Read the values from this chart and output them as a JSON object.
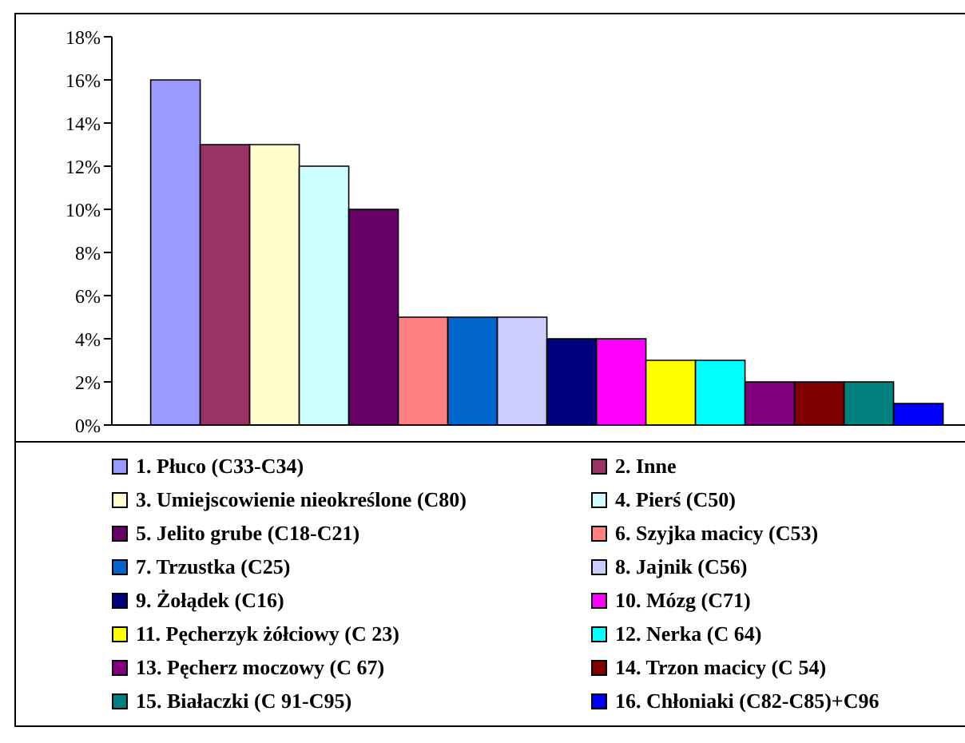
{
  "chart_data": {
    "type": "bar",
    "categories": [
      null
    ],
    "series": [
      {
        "name": "1. Płuco (C33-C34)",
        "color": "#9999ff",
        "values": [
          16
        ]
      },
      {
        "name": "2. Inne",
        "color": "#993366",
        "values": [
          13
        ]
      },
      {
        "name": "3. Umiejscowienie nieokreślone (C80)",
        "color": "#ffffcc",
        "values": [
          13
        ]
      },
      {
        "name": "4. Pierś (C50)",
        "color": "#ccffff",
        "values": [
          12
        ]
      },
      {
        "name": "5. Jelito grube (C18-C21)",
        "color": "#660066",
        "values": [
          10
        ]
      },
      {
        "name": "6. Szyjka macicy (C53)",
        "color": "#ff8080",
        "values": [
          5
        ]
      },
      {
        "name": "7. Trzustka (C25)",
        "color": "#0066cc",
        "values": [
          5
        ]
      },
      {
        "name": "8. Jajnik (C56)",
        "color": "#ccccff",
        "values": [
          5
        ]
      },
      {
        "name": "9. Żołądek (C16)",
        "color": "#000080",
        "values": [
          4
        ]
      },
      {
        "name": "10. Mózg (C71)",
        "color": "#ff00ff",
        "values": [
          4
        ]
      },
      {
        "name": "11. Pęcherzyk żółciowy (C 23)",
        "color": "#ffff00",
        "values": [
          3
        ]
      },
      {
        "name": "12. Nerka (C 64)",
        "color": "#00ffff",
        "values": [
          3
        ]
      },
      {
        "name": "13. Pęcherz moczowy (C 67)",
        "color": "#800080",
        "values": [
          2
        ]
      },
      {
        "name": "14. Trzon macicy (C 54)",
        "color": "#800000",
        "values": [
          2
        ]
      },
      {
        "name": "15. Białaczki (C 91-C95)",
        "color": "#008080",
        "values": [
          2
        ]
      },
      {
        "name": "16. Chłoniaki (C82-C85)+C96",
        "color": "#0000ff",
        "values": [
          1
        ]
      }
    ],
    "ylim": [
      0,
      18
    ],
    "yticks": [
      {
        "value": 0,
        "label": "0%"
      },
      {
        "value": 2,
        "label": "2%"
      },
      {
        "value": 4,
        "label": "4%"
      },
      {
        "value": 6,
        "label": "6%"
      },
      {
        "value": 8,
        "label": "8%"
      },
      {
        "value": 10,
        "label": "10%"
      },
      {
        "value": 12,
        "label": "12%"
      },
      {
        "value": 14,
        "label": "14%"
      },
      {
        "value": 16,
        "label": "16%"
      },
      {
        "value": 18,
        "label": "18%"
      }
    ],
    "legend": "bottom",
    "grid": false
  }
}
